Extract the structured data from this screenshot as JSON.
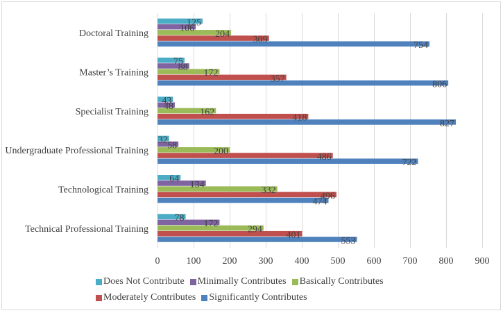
{
  "chart_data": {
    "type": "bar",
    "orientation": "horizontal",
    "title": "",
    "xlabel": "",
    "ylabel": "",
    "xlim": [
      0,
      900
    ],
    "xticks": [
      0,
      100,
      200,
      300,
      400,
      500,
      600,
      700,
      800,
      900
    ],
    "grid": true,
    "legend_position": "bottom",
    "categories": [
      "Doctoral Training",
      "Master’s Training",
      "Specialist Training",
      "Undergraduate Professional Training",
      "Technological Training",
      "Technical Professional Training"
    ],
    "series": [
      {
        "name": "Does Not Contribute",
        "color": "#4bacc6",
        "values": [
          125,
          75,
          43,
          32,
          64,
          78
        ]
      },
      {
        "name": "Minimally Contributes",
        "color": "#8064a2",
        "values": [
          106,
          88,
          48,
          58,
          134,
          172
        ]
      },
      {
        "name": "Basically Contributes",
        "color": "#9bbb59",
        "values": [
          204,
          172,
          162,
          200,
          332,
          294
        ]
      },
      {
        "name": "Moderately Contributes",
        "color": "#c0504d",
        "values": [
          309,
          357,
          418,
          486,
          496,
          401
        ]
      },
      {
        "name": "Significantly Contributes",
        "color": "#4f81bd",
        "values": [
          754,
          806,
          827,
          722,
          474,
          553
        ]
      }
    ]
  },
  "legend": {
    "rows": [
      [
        0,
        1,
        2
      ],
      [
        3,
        4
      ]
    ]
  }
}
